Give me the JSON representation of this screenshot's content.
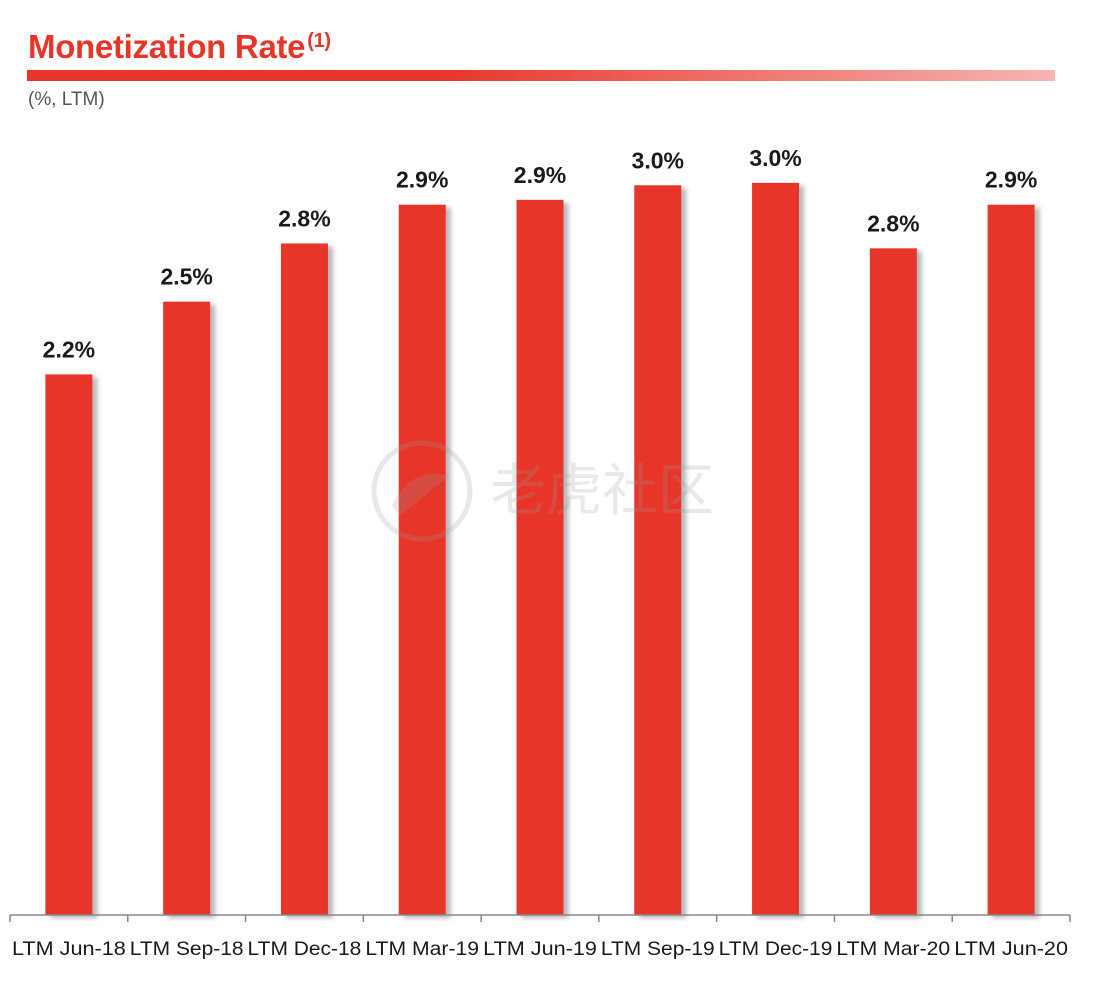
{
  "header": {
    "title": "Monetization Rate",
    "title_superscript": "(1)",
    "subtitle": "(%, LTM)"
  },
  "watermark": {
    "text": "老虎社区"
  },
  "colors": {
    "bar": "#e8352a",
    "title": "#e8352a",
    "text": "#1a1a1a",
    "axis": "#888888"
  },
  "chart_data": {
    "type": "bar",
    "title": "Monetization Rate(1)",
    "subtitle": "(%, LTM)",
    "xlabel": "",
    "ylabel": "",
    "categories": [
      "LTM Jun-18",
      "LTM Sep-18",
      "LTM Dec-18",
      "LTM Mar-19",
      "LTM Jun-19",
      "LTM Sep-19",
      "LTM Dec-19",
      "LTM Mar-20",
      "LTM Jun-20"
    ],
    "values": [
      2.23,
      2.53,
      2.77,
      2.93,
      2.95,
      3.01,
      3.02,
      2.75,
      2.93
    ],
    "data_labels": [
      "2.2%",
      "2.5%",
      "2.8%",
      "2.9%",
      "2.9%",
      "3.0%",
      "3.0%",
      "2.8%",
      "2.9%"
    ],
    "ylim": [
      0,
      3.3
    ],
    "grid": false,
    "legend": "none"
  }
}
